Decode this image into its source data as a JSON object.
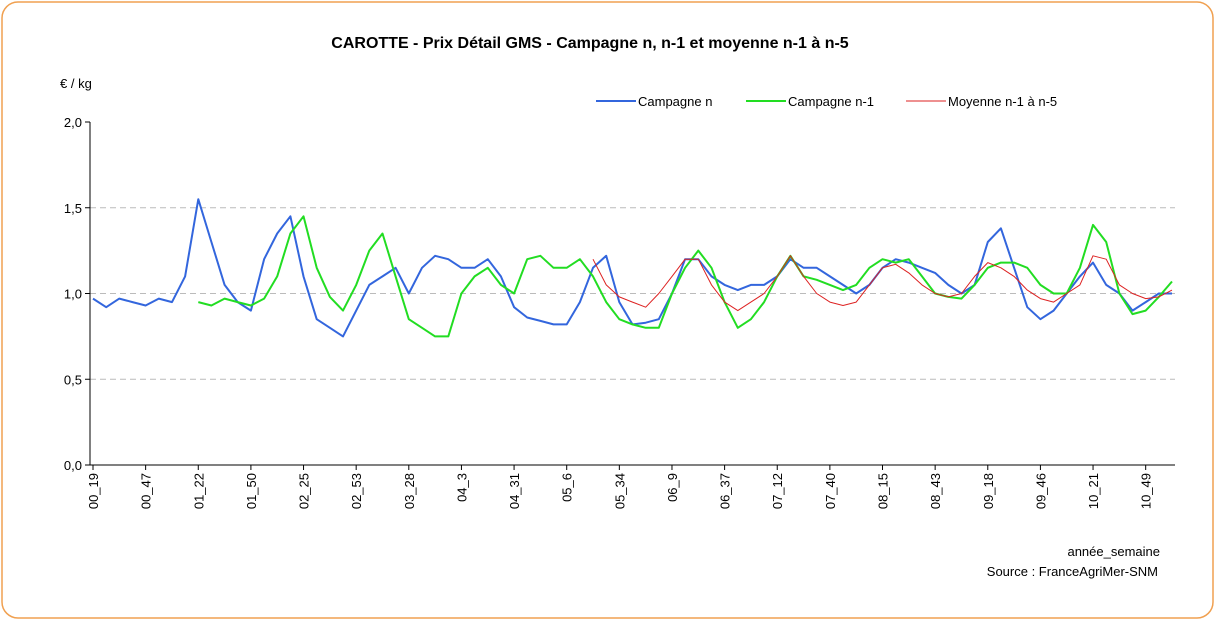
{
  "chart_data": {
    "type": "line",
    "title": "CAROTTE - Prix Détail GMS - Campagne n, n-1 et moyenne n-1 à n-5",
    "y_label": "€ / kg",
    "x_label": "année_semaine",
    "source": "Source : FranceAgriMer-SNM",
    "categories": [
      "00_19",
      null,
      null,
      null,
      "00_47",
      null,
      null,
      null,
      "01_22",
      null,
      null,
      null,
      "01_50",
      null,
      null,
      null,
      "02_25",
      null,
      null,
      null,
      "02_53",
      null,
      null,
      null,
      "03_28",
      null,
      null,
      null,
      "04_3",
      null,
      null,
      null,
      "04_31",
      null,
      null,
      null,
      "05_6",
      null,
      null,
      null,
      "05_34",
      null,
      null,
      null,
      "06_9",
      null,
      null,
      null,
      "06_37",
      null,
      null,
      null,
      "07_12",
      null,
      null,
      null,
      "07_40",
      null,
      null,
      null,
      "08_15",
      null,
      null,
      null,
      "08_43",
      null,
      null,
      null,
      "09_18",
      null,
      null,
      null,
      "09_46",
      null,
      null,
      null,
      "10_21",
      null,
      null,
      null,
      "10_49",
      null,
      null
    ],
    "series": [
      {
        "name": "Campagne n",
        "color": "#3366dd",
        "width": 2,
        "values": [
          0.97,
          0.92,
          0.97,
          0.95,
          0.93,
          0.97,
          0.95,
          1.1,
          1.55,
          1.3,
          1.05,
          0.95,
          0.9,
          1.2,
          1.35,
          1.45,
          1.1,
          0.85,
          0.8,
          0.75,
          0.9,
          1.05,
          1.1,
          1.15,
          1.0,
          1.15,
          1.22,
          1.2,
          1.15,
          1.15,
          1.2,
          1.1,
          0.92,
          0.86,
          0.84,
          0.82,
          0.82,
          0.95,
          1.15,
          1.22,
          0.95,
          0.82,
          0.83,
          0.85,
          1.0,
          1.2,
          1.2,
          1.1,
          1.05,
          1.02,
          1.05,
          1.05,
          1.1,
          1.2,
          1.15,
          1.15,
          1.1,
          1.05,
          1.0,
          1.05,
          1.15,
          1.2,
          1.18,
          1.15,
          1.12,
          1.05,
          1.0,
          1.05,
          1.3,
          1.38,
          1.15,
          0.92,
          0.85,
          0.9,
          1.0,
          1.1,
          1.18,
          1.05,
          1.0,
          0.9,
          0.95,
          1.0,
          1.0
        ]
      },
      {
        "name": "Campagne n-1",
        "color": "#22dd22",
        "width": 2,
        "values": [
          null,
          null,
          null,
          null,
          null,
          null,
          null,
          null,
          0.95,
          0.93,
          0.97,
          0.95,
          0.93,
          0.97,
          1.1,
          1.35,
          1.45,
          1.15,
          0.98,
          0.9,
          1.05,
          1.25,
          1.35,
          1.1,
          0.85,
          0.8,
          0.75,
          0.75,
          1.0,
          1.1,
          1.15,
          1.05,
          1.0,
          1.2,
          1.22,
          1.15,
          1.15,
          1.2,
          1.1,
          0.95,
          0.85,
          0.82,
          0.8,
          0.8,
          1.0,
          1.15,
          1.25,
          1.15,
          0.95,
          0.8,
          0.85,
          0.95,
          1.1,
          1.22,
          1.1,
          1.08,
          1.05,
          1.02,
          1.05,
          1.15,
          1.2,
          1.18,
          1.2,
          1.1,
          1.0,
          0.98,
          0.97,
          1.05,
          1.15,
          1.18,
          1.18,
          1.15,
          1.05,
          1.0,
          1.0,
          1.15,
          1.4,
          1.3,
          1.0,
          0.88,
          0.9,
          0.98,
          1.07
        ]
      },
      {
        "name": "Moyenne n-1 à n-5",
        "color": "#dd2222",
        "width": 1,
        "values": [
          null,
          null,
          null,
          null,
          null,
          null,
          null,
          null,
          null,
          null,
          null,
          null,
          null,
          null,
          null,
          null,
          null,
          null,
          null,
          null,
          null,
          null,
          null,
          null,
          null,
          null,
          null,
          null,
          null,
          null,
          null,
          null,
          null,
          null,
          null,
          null,
          null,
          null,
          1.2,
          1.05,
          0.98,
          0.95,
          0.92,
          1.0,
          1.1,
          1.2,
          1.2,
          1.05,
          0.95,
          0.9,
          0.95,
          1.0,
          1.1,
          1.22,
          1.1,
          1.0,
          0.95,
          0.93,
          0.95,
          1.05,
          1.15,
          1.17,
          1.12,
          1.05,
          1.0,
          0.98,
          1.0,
          1.1,
          1.18,
          1.15,
          1.1,
          1.02,
          0.97,
          0.95,
          1.0,
          1.05,
          1.22,
          1.2,
          1.05,
          1.0,
          0.97,
          0.98,
          1.02
        ]
      }
    ],
    "ylim": [
      0,
      2
    ],
    "yticks": [
      {
        "value": 0,
        "label": "0,0"
      },
      {
        "value": 0.5,
        "label": "0,5"
      },
      {
        "value": 1,
        "label": "1,0"
      },
      {
        "value": 1.5,
        "label": "1,5"
      },
      {
        "value": 2,
        "label": "2,0"
      }
    ],
    "grid": true
  }
}
